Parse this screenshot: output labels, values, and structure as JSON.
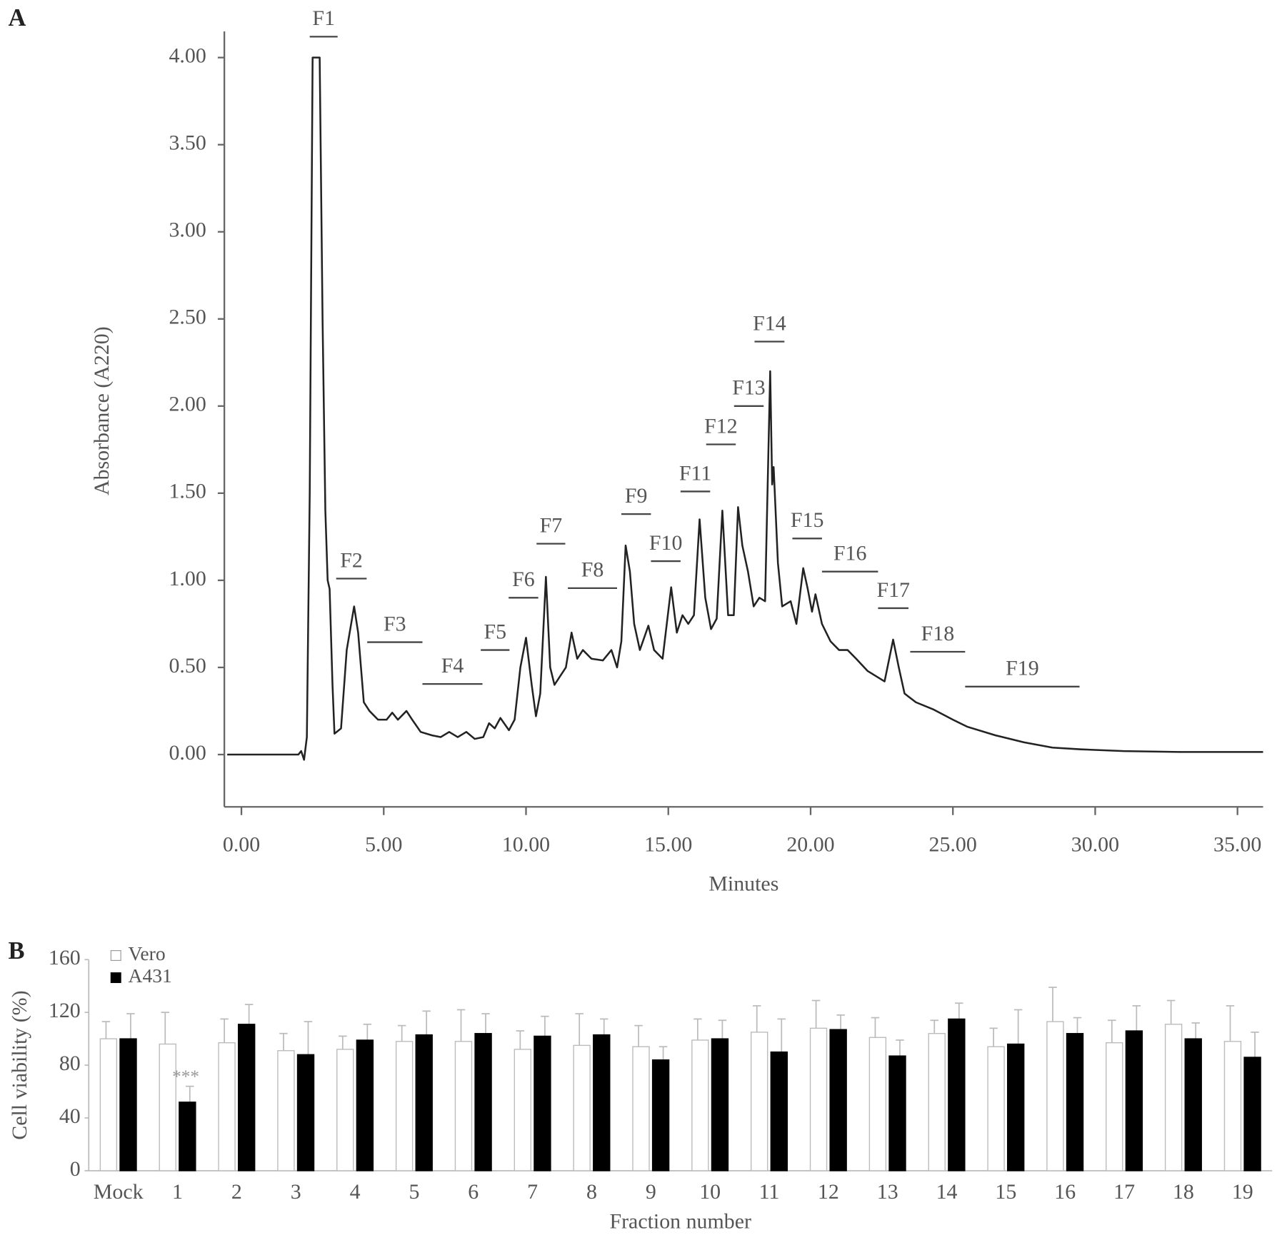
{
  "chart_data": [
    {
      "type": "line",
      "panel": "A",
      "x_label": "Minutes",
      "y_label": "Absorbance (A220)",
      "color": "#222222",
      "xlim": [
        -0.6,
        35.9
      ],
      "ylim": [
        -0.3,
        4.15
      ],
      "xticks": [
        {
          "value": 0,
          "label": "0.00"
        },
        {
          "value": 5,
          "label": "5.00"
        },
        {
          "value": 10,
          "label": "10.00"
        },
        {
          "value": 15,
          "label": "15.00"
        },
        {
          "value": 20,
          "label": "20.00"
        },
        {
          "value": 25,
          "label": "25.00"
        },
        {
          "value": 30,
          "label": "30.00"
        },
        {
          "value": 35,
          "label": "35.00"
        }
      ],
      "yticks": [
        {
          "value": 0,
          "label": "0.00"
        },
        {
          "value": 0.5,
          "label": "0.50"
        },
        {
          "value": 1,
          "label": "1.00"
        },
        {
          "value": 1.5,
          "label": "1.50"
        },
        {
          "value": 2,
          "label": "2.00"
        },
        {
          "value": 2.5,
          "label": "2.50"
        },
        {
          "value": 3,
          "label": "3.00"
        },
        {
          "value": 3.5,
          "label": "3.50"
        },
        {
          "value": 4,
          "label": "4.00"
        }
      ],
      "x": [
        -0.5,
        2.0,
        2.1,
        2.2,
        2.3,
        2.4,
        2.5,
        2.75,
        2.85,
        2.95,
        3.03,
        3.1,
        3.2,
        3.27,
        3.5,
        3.7,
        3.96,
        4.1,
        4.3,
        4.5,
        4.8,
        5.1,
        5.3,
        5.5,
        5.8,
        6.0,
        6.3,
        6.7,
        7.0,
        7.3,
        7.6,
        7.9,
        8.2,
        8.5,
        8.7,
        8.9,
        9.1,
        9.4,
        9.6,
        9.8,
        10.0,
        10.2,
        10.35,
        10.5,
        10.7,
        10.85,
        11.0,
        11.2,
        11.4,
        11.6,
        11.8,
        12.0,
        12.3,
        12.7,
        13.0,
        13.2,
        13.35,
        13.5,
        13.65,
        13.8,
        14.0,
        14.3,
        14.5,
        14.8,
        15.1,
        15.3,
        15.5,
        15.7,
        15.9,
        16.1,
        16.3,
        16.5,
        16.7,
        16.9,
        17.1,
        17.3,
        17.45,
        17.6,
        17.8,
        18.0,
        18.2,
        18.4,
        18.58,
        18.65,
        18.7,
        18.85,
        19.0,
        19.3,
        19.5,
        19.74,
        19.9,
        20.05,
        20.17,
        20.4,
        20.7,
        21.0,
        21.3,
        21.6,
        22.0,
        22.3,
        22.6,
        22.9,
        23.1,
        23.3,
        23.7,
        24.3,
        25.0,
        25.5,
        26.5,
        27.5,
        28.5,
        29.5,
        31.0,
        33.0,
        35.9
      ],
      "values": [
        0,
        0,
        0.02,
        -0.03,
        0.1,
        1.5,
        4.0,
        4.0,
        2.5,
        1.4,
        1.0,
        0.95,
        0.4,
        0.12,
        0.15,
        0.6,
        0.85,
        0.7,
        0.3,
        0.25,
        0.2,
        0.2,
        0.24,
        0.2,
        0.25,
        0.2,
        0.13,
        0.11,
        0.1,
        0.13,
        0.1,
        0.13,
        0.09,
        0.1,
        0.18,
        0.15,
        0.21,
        0.14,
        0.2,
        0.5,
        0.67,
        0.4,
        0.22,
        0.35,
        1.02,
        0.5,
        0.4,
        0.45,
        0.5,
        0.7,
        0.55,
        0.6,
        0.55,
        0.54,
        0.6,
        0.5,
        0.65,
        1.2,
        1.05,
        0.75,
        0.6,
        0.74,
        0.6,
        0.55,
        0.96,
        0.7,
        0.8,
        0.75,
        0.8,
        1.35,
        0.9,
        0.72,
        0.78,
        1.4,
        0.8,
        0.8,
        1.42,
        1.2,
        1.05,
        0.85,
        0.9,
        0.88,
        2.2,
        1.55,
        1.65,
        1.1,
        0.85,
        0.88,
        0.75,
        1.07,
        0.95,
        0.82,
        0.92,
        0.75,
        0.65,
        0.6,
        0.6,
        0.55,
        0.48,
        0.45,
        0.42,
        0.66,
        0.5,
        0.35,
        0.3,
        0.26,
        0.2,
        0.16,
        0.11,
        0.07,
        0.04,
        0.03,
        0.02,
        0.015,
        0.015
      ],
      "fractions": [
        {
          "label": "F1",
          "start": 2.4,
          "end": 3.38,
          "y": 4.12
        },
        {
          "label": "F2",
          "start": 3.33,
          "end": 4.4,
          "y": 1.01
        },
        {
          "label": "F3",
          "start": 4.42,
          "end": 6.36,
          "y": 0.645
        },
        {
          "label": "F4",
          "start": 6.36,
          "end": 8.47,
          "y": 0.405
        },
        {
          "label": "F5",
          "start": 8.41,
          "end": 9.42,
          "y": 0.6
        },
        {
          "label": "F6",
          "start": 9.39,
          "end": 10.43,
          "y": 0.9
        },
        {
          "label": "F7",
          "start": 10.37,
          "end": 11.38,
          "y": 1.21
        },
        {
          "label": "F8",
          "start": 11.47,
          "end": 13.2,
          "y": 0.955
        },
        {
          "label": "F9",
          "start": 13.35,
          "end": 14.39,
          "y": 1.38
        },
        {
          "label": "F10",
          "start": 14.39,
          "end": 15.43,
          "y": 1.11
        },
        {
          "label": "F11",
          "start": 15.43,
          "end": 16.47,
          "y": 1.51
        },
        {
          "label": "F12",
          "start": 16.33,
          "end": 17.37,
          "y": 1.78
        },
        {
          "label": "F13",
          "start": 17.31,
          "end": 18.35,
          "y": 2.0
        },
        {
          "label": "F14",
          "start": 18.03,
          "end": 19.08,
          "y": 2.37
        },
        {
          "label": "F15",
          "start": 19.36,
          "end": 20.4,
          "y": 1.24
        },
        {
          "label": "F16",
          "start": 20.4,
          "end": 22.37,
          "y": 1.05
        },
        {
          "label": "F17",
          "start": 22.37,
          "end": 23.44,
          "y": 0.84
        },
        {
          "label": "F18",
          "start": 23.5,
          "end": 25.43,
          "y": 0.59
        },
        {
          "label": "F19",
          "start": 25.43,
          "end": 29.45,
          "y": 0.39
        }
      ]
    },
    {
      "type": "bar",
      "panel": "B",
      "x_label": "Fraction number",
      "y_label": "Cell viability (%)",
      "ylim": [
        0,
        160
      ],
      "yticks": [
        0,
        40,
        80,
        120,
        160
      ],
      "legend": "top-left",
      "categories": [
        "Mock",
        "1",
        "2",
        "3",
        "4",
        "5",
        "6",
        "7",
        "8",
        "9",
        "10",
        "11",
        "12",
        "13",
        "14",
        "15",
        "16",
        "17",
        "18",
        "19"
      ],
      "series": [
        {
          "name": "Vero",
          "color": "#ffffff",
          "values": [
            100,
            96,
            97,
            91,
            92,
            98,
            98,
            92,
            95,
            94,
            99,
            105,
            108,
            101,
            104,
            94,
            113,
            97,
            111,
            98
          ],
          "errors": [
            13,
            24,
            18,
            13,
            10,
            12,
            24,
            14,
            24,
            16,
            16,
            20,
            21,
            15,
            10,
            14,
            26,
            17,
            18,
            27
          ]
        },
        {
          "name": "A431",
          "color": "#000000",
          "values": [
            100,
            52,
            111,
            88,
            99,
            103,
            104,
            102,
            103,
            84,
            100,
            90,
            107,
            87,
            115,
            96,
            104,
            106,
            100,
            86
          ],
          "errors": [
            19,
            12,
            15,
            25,
            12,
            18,
            15,
            15,
            12,
            10,
            14,
            25,
            11,
            12,
            12,
            26,
            12,
            19,
            12,
            19
          ]
        }
      ],
      "annotations": [
        {
          "text": "***",
          "category": "1",
          "series": "A431"
        }
      ]
    }
  ]
}
